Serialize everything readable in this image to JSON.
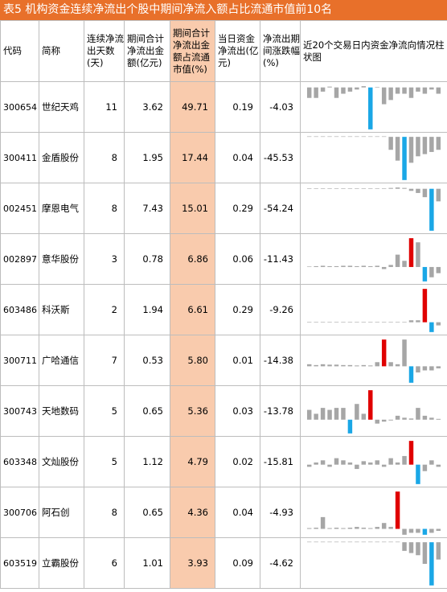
{
  "title": "表5  机构资金连续净流出个股中期间净流入额占比流通市值前10名",
  "headers": {
    "code": "代码",
    "name": "简称",
    "days": "连续净流出天数(天)",
    "total": "期间合计净流出金额(亿元)",
    "ratio": "期间合计净流出金额占流通市值(%)",
    "today": "当日资金净流出(亿元)",
    "change": "净流出期间涨跌幅(%)",
    "chart": "近20个交易日内资金净流向情况柱状图"
  },
  "colors": {
    "title_bg": "#e8702a",
    "highlight": "#f9cbad",
    "bar_gray": "#a6a6a6",
    "bar_red": "#e00000",
    "bar_blue": "#1aa7e6"
  },
  "rows": [
    {
      "code": "300654",
      "name": "世纪天鸡",
      "days": "11",
      "total": "3.62",
      "ratio": "49.71",
      "today": "0.19",
      "change": "-4.03",
      "bars": [
        -0.25,
        -0.25,
        -0.1,
        0.02,
        -0.25,
        -0.15,
        -0.1,
        -0.05,
        0.03,
        -1.0,
        0.0,
        -0.4,
        -0.3,
        -0.15,
        -0.15,
        -0.25,
        -0.1,
        -0.15,
        -0.05,
        -0.15
      ],
      "red": -1,
      "blue": 9
    },
    {
      "code": "300411",
      "name": "金盾股份",
      "days": "8",
      "total": "1.95",
      "ratio": "17.44",
      "today": "0.04",
      "change": "-45.53",
      "bars": [
        0,
        0,
        0,
        0,
        0,
        0,
        0,
        0,
        0,
        0,
        0,
        0,
        -0.3,
        -0.55,
        -1.0,
        -0.6,
        -0.45,
        -0.4,
        -0.35,
        -0.3
      ],
      "red": -1,
      "blue": 14
    },
    {
      "code": "002451",
      "name": "摩恩电气",
      "days": "8",
      "total": "7.43",
      "ratio": "15.01",
      "today": "0.29",
      "change": "-54.24",
      "bars": [
        0,
        0,
        0,
        0,
        0,
        0,
        0,
        0,
        0,
        0,
        0,
        0,
        0.02,
        0.03,
        0.02,
        -0.05,
        -0.1,
        -0.2,
        -1.0,
        -0.3
      ],
      "red": -1,
      "blue": 18
    },
    {
      "code": "002897",
      "name": "意华股份",
      "days": "3",
      "total": "0.78",
      "ratio": "6.86",
      "today": "0.06",
      "change": "-11.43",
      "bars": [
        0,
        0.02,
        0.03,
        0.02,
        0.02,
        0.03,
        0.03,
        0.02,
        0.03,
        0.02,
        0.03,
        -0.05,
        0.05,
        0.3,
        0.15,
        0.7,
        0.6,
        -0.35,
        -0.25,
        -0.15
      ],
      "red": 15,
      "blue": 17
    },
    {
      "code": "603486",
      "name": "科沃斯",
      "days": "2",
      "total": "1.94",
      "ratio": "6.61",
      "today": "0.29",
      "change": "-9.26",
      "bars": [
        0,
        0,
        0,
        0,
        0,
        0,
        0,
        0,
        0,
        0,
        0,
        0,
        0,
        0,
        0,
        0.05,
        0.05,
        0.85,
        -0.25,
        -0.08
      ],
      "red": 17,
      "blue": 18
    },
    {
      "code": "300711",
      "name": "广哈通信",
      "days": "7",
      "total": "0.53",
      "ratio": "5.80",
      "today": "0.01",
      "change": "-14.38",
      "bars": [
        0.05,
        0.03,
        0.05,
        0.04,
        0.04,
        0.03,
        0.03,
        0.02,
        0.03,
        0.02,
        0.1,
        0.65,
        0.1,
        0.05,
        0.65,
        -0.4,
        -0.15,
        -0.1,
        -0.1,
        -0.05
      ],
      "red": 11,
      "blue": 15
    },
    {
      "code": "300743",
      "name": "天地数码",
      "days": "5",
      "total": "0.65",
      "ratio": "5.36",
      "today": "0.03",
      "change": "-13.78",
      "bars": [
        0.25,
        0.15,
        0.3,
        0.25,
        0.3,
        0.3,
        -0.35,
        0.4,
        0.15,
        0.75,
        -0.1,
        -0.05,
        -0.02,
        0.1,
        0.05,
        0.03,
        0.3,
        0.1,
        0.05,
        0.02
      ],
      "red": 9,
      "blue": 6
    },
    {
      "code": "603348",
      "name": "文灿股份",
      "days": "5",
      "total": "1.12",
      "ratio": "4.79",
      "today": "0.02",
      "change": "-15.81",
      "bars": [
        -0.05,
        0.05,
        0.1,
        -0.05,
        0.15,
        0.1,
        0.05,
        -0.1,
        0.08,
        0.05,
        0.1,
        -0.05,
        0.15,
        0.05,
        0.2,
        0.55,
        -0.45,
        -0.15,
        0.1,
        -0.05
      ],
      "red": 15,
      "blue": 16
    },
    {
      "code": "300706",
      "name": "阿石创",
      "days": "8",
      "total": "0.65",
      "ratio": "4.36",
      "today": "0.04",
      "change": "-4.93",
      "bars": [
        0.02,
        0.03,
        0.3,
        0.02,
        0.03,
        0.02,
        0.03,
        0.05,
        0.03,
        0.02,
        0.05,
        0.15,
        0.05,
        0.95,
        -0.15,
        -0.1,
        -0.1,
        -0.15,
        -0.1,
        -0.05
      ],
      "red": 13,
      "blue": 17
    },
    {
      "code": "603519",
      "name": "立霸股份",
      "days": "6",
      "total": "1.01",
      "ratio": "3.93",
      "today": "0.09",
      "change": "-4.62",
      "bars": [
        0,
        0,
        0,
        0,
        0,
        0,
        0,
        0,
        0,
        0,
        0,
        0,
        0,
        0,
        -0.2,
        -0.25,
        -0.3,
        -0.5,
        -1.0,
        -0.4
      ],
      "red": -1,
      "blue": 18
    }
  ]
}
